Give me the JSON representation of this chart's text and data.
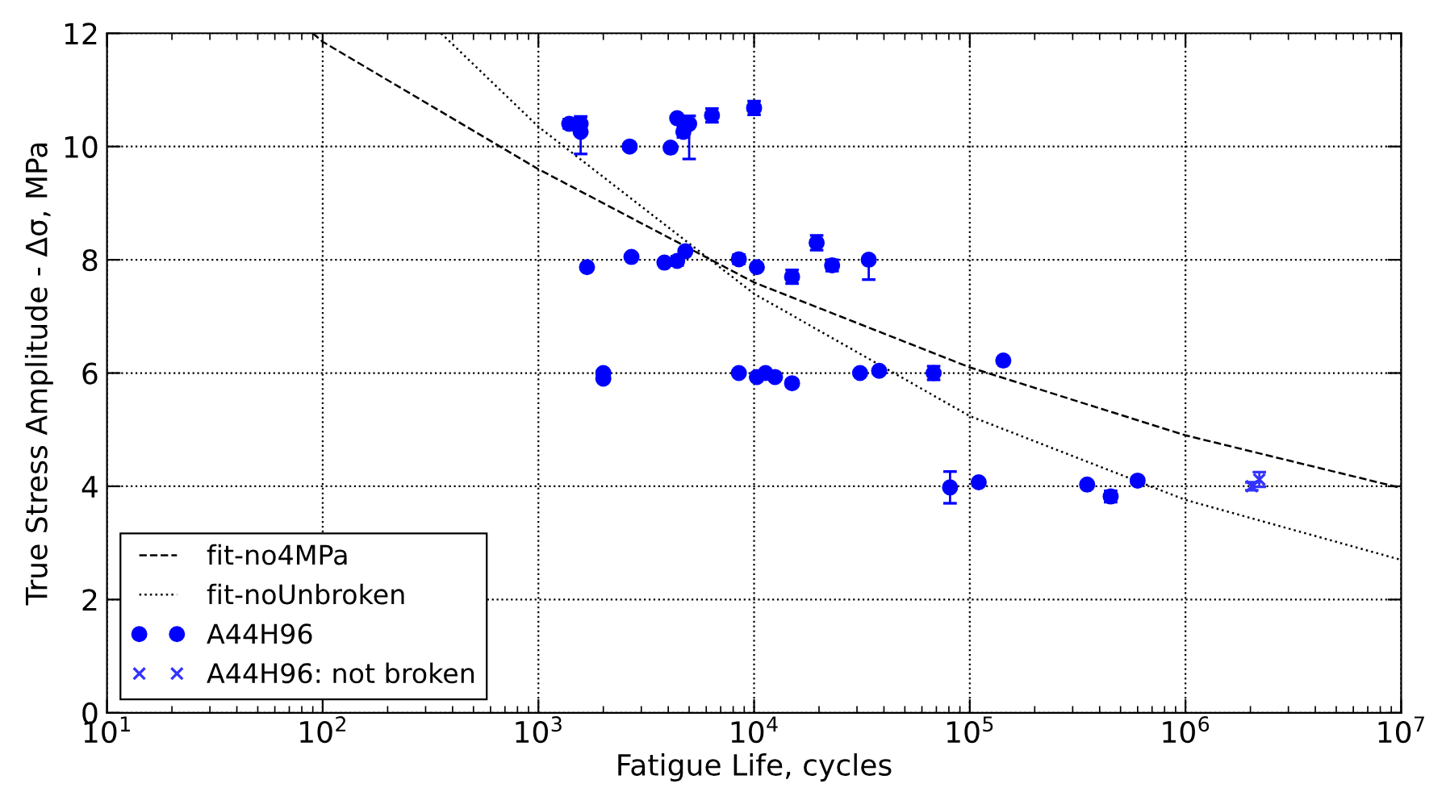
{
  "chart_data": {
    "type": "scatter",
    "xlabel": "Fatigue Life, cycles",
    "ylabel": "True Stress Amplitude - Δσ, MPa",
    "log": "x",
    "grid": true,
    "legend": "bottom left",
    "xlim": [
      10,
      10000000
    ],
    "xticks": [
      {
        "value": 10,
        "label": "10$^{1}$"
      },
      {
        "value": 100,
        "label": "10$^{2}$"
      },
      {
        "value": 1000,
        "label": "10$^{3}$"
      },
      {
        "value": 10000,
        "label": "10$^{4}$"
      },
      {
        "value": 100000,
        "label": "10$^{5}$"
      },
      {
        "value": 1000000,
        "label": "10$^{6}$"
      },
      {
        "value": 10000000,
        "label": "10$^{7}$"
      }
    ],
    "ylim": [
      0,
      12
    ],
    "yticks": [
      0,
      2,
      4,
      6,
      8,
      10,
      12
    ],
    "series": [
      {
        "name": "fit-no4MPa",
        "type": "line",
        "line_style": "dashed",
        "color": "#000000",
        "x": [
          90,
          100,
          1000,
          10000,
          100000,
          1000000,
          10000000
        ],
        "values": [
          12.0,
          11.85,
          9.6,
          7.6,
          6.1,
          4.9,
          3.97
        ]
      },
      {
        "name": "fit-noUnbroken",
        "type": "line",
        "line_style": "dotted",
        "color": "#000000",
        "x": [
          354,
          1000,
          10000,
          100000,
          1000000,
          10000000
        ],
        "values": [
          12.0,
          10.35,
          7.4,
          5.24,
          3.76,
          2.7
        ]
      },
      {
        "name": "A44H96",
        "marker": "circle",
        "color": "#0000ff",
        "x": [
          1390,
          1570,
          1570,
          1680,
          2000,
          2000,
          2650,
          2700,
          3840,
          4100,
          4400,
          4400,
          4700,
          4800,
          5000,
          6380,
          8500,
          8500,
          10000,
          10300,
          10300,
          11300,
          12500,
          15000,
          15000,
          19500,
          23000,
          31000,
          34000,
          38000,
          68000,
          81000,
          110000,
          143000,
          350000,
          450000,
          600000
        ],
        "values": [
          10.4,
          10.4,
          10.26,
          7.87,
          6.0,
          5.9,
          10.0,
          8.05,
          7.95,
          9.98,
          10.5,
          7.98,
          10.26,
          8.15,
          10.4,
          10.55,
          6.0,
          8.01,
          10.68,
          7.87,
          5.93,
          6.0,
          5.93,
          7.7,
          5.82,
          8.3,
          7.9,
          6.0,
          8.0,
          6.04,
          6.0,
          3.98,
          4.07,
          6.22,
          4.03,
          3.82,
          4.1
        ],
        "errors": [
          0.08,
          0.12,
          [
            9.87,
            10.53
          ],
          null,
          null,
          null,
          null,
          null,
          0.05,
          null,
          null,
          0.08,
          0.1,
          null,
          [
            9.78,
            10.54
          ],
          0.12,
          null,
          0.08,
          0.12,
          null,
          null,
          null,
          null,
          0.12,
          0.06,
          0.13,
          0.1,
          null,
          [
            7.65,
            8.05
          ],
          null,
          0.12,
          0.28,
          null,
          null,
          null,
          0.1,
          0.05
        ]
      },
      {
        "name": "A44H96: not broken",
        "marker": "cross",
        "color": "#3333ff",
        "x": [
          2030000,
          2200000
        ],
        "values": [
          4.0,
          4.12
        ],
        "errors": [
          0.07,
          0.13
        ]
      }
    ]
  }
}
